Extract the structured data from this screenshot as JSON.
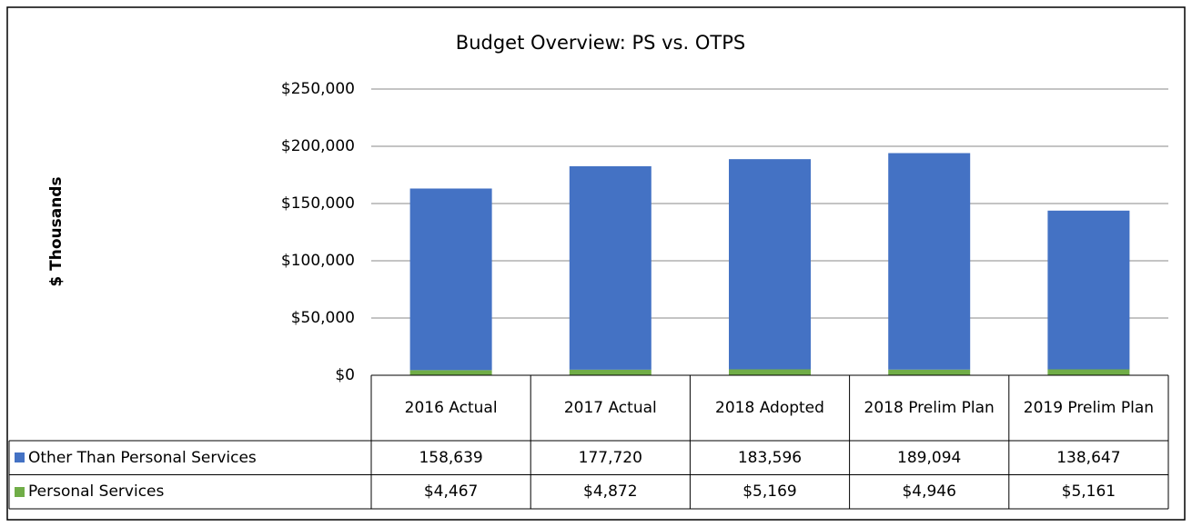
{
  "chart_data": {
    "type": "bar",
    "stacked": true,
    "title": "Budget Overview: PS vs. OTPS",
    "y_label": "$ Thousands",
    "categories": [
      "2016 Actual",
      "2017 Actual",
      "2018 Adopted",
      "2018 Prelim Plan",
      "2019 Prelim Plan"
    ],
    "series": [
      {
        "name": "Other Than Personal Services",
        "color": "#4472c4",
        "values": [
          158639,
          177720,
          183596,
          189094,
          138647
        ],
        "value_labels": [
          "158,639",
          "177,720",
          "183,596",
          "189,094",
          "138,647"
        ]
      },
      {
        "name": "Personal Services",
        "color": "#70ad47",
        "values": [
          4467,
          4872,
          5169,
          4946,
          5161
        ],
        "value_labels": [
          "$4,467",
          "$4,872",
          "$5,169",
          "$4,946",
          "$5,161"
        ]
      }
    ],
    "ylim": [
      0,
      250000
    ],
    "yticks": [
      {
        "value": 0,
        "label": "$0"
      },
      {
        "value": 50000,
        "label": "$50,000"
      },
      {
        "value": 100000,
        "label": "$100,000"
      },
      {
        "value": 150000,
        "label": "$150,000"
      },
      {
        "value": 200000,
        "label": "$200,000"
      },
      {
        "value": 250000,
        "label": "$250,000"
      }
    ],
    "grid": true
  }
}
